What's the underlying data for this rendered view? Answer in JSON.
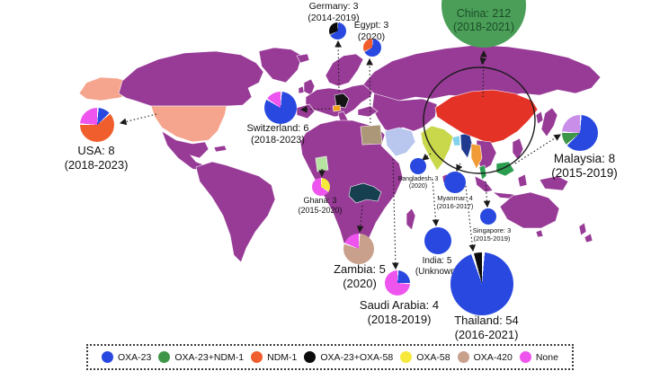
{
  "chart_data": {
    "type": "pie",
    "description": "World map with per-country pie charts of carbapenemase genotypes and sampling periods",
    "genotype_colors": {
      "OXA-23": "#2948df",
      "OXA-23+NDM-1": "#3e9749",
      "NDM-1": "#f15e2d",
      "OXA-23+OXA-58": "#0b0b0b",
      "OXA-58": "#f6e93c",
      "OXA-420": "#c8a08c",
      "None": "#ee55ee"
    },
    "pies": [
      {
        "id": "usa",
        "label": "USA: 8",
        "period": "(2018-2023)",
        "total": 8,
        "slices": [
          {
            "genotype": "OXA-23",
            "value": 1
          },
          {
            "genotype": "NDM-1",
            "value": 5
          },
          {
            "genotype": "None",
            "value": 2
          }
        ]
      },
      {
        "id": "switzerland",
        "label": "Switzerland: 6",
        "period": "(2018-2023)",
        "total": 6,
        "slices": [
          {
            "genotype": "OXA-23",
            "value": 5
          },
          {
            "genotype": "None",
            "value": 1
          }
        ]
      },
      {
        "id": "germany",
        "label": "Germany: 3",
        "period": "(2014-2019)",
        "total": 3,
        "slices": [
          {
            "genotype": "OXA-23",
            "value": 2
          },
          {
            "genotype": "OXA-23+OXA-58",
            "value": 1
          }
        ]
      },
      {
        "id": "egypt",
        "label": "Egypt: 3",
        "period": "(2020)",
        "total": 3,
        "slices": [
          {
            "genotype": "OXA-23",
            "value": 2
          },
          {
            "genotype": "NDM-1",
            "value": 1
          }
        ]
      },
      {
        "id": "china",
        "label": "China: 212",
        "period": "(2018-2021)",
        "total": 212,
        "slices": [
          {
            "genotype": "OXA-23+NDM-1",
            "value": 212,
            "color": "#4a9e58"
          }
        ]
      },
      {
        "id": "ghana",
        "label": "Ghana: 3",
        "period": "(2015-2020)",
        "total": 3,
        "slices": [
          {
            "genotype": "OXA-58",
            "value": 1
          },
          {
            "genotype": "None",
            "value": 2
          }
        ]
      },
      {
        "id": "zambia",
        "label": "Zambia: 5",
        "period": "(2020)",
        "total": 5,
        "slices": [
          {
            "genotype": "OXA-420",
            "value": 4
          },
          {
            "genotype": "None",
            "value": 1
          }
        ]
      },
      {
        "id": "saudi-arabia",
        "label": "Saudi Arabia: 4",
        "period": "(2018-2019)",
        "total": 4,
        "slices": [
          {
            "genotype": "OXA-23",
            "value": 1
          },
          {
            "genotype": "None",
            "value": 3
          }
        ]
      },
      {
        "id": "bangladesh",
        "label": "Bangladesh: 3",
        "period": "(2020)",
        "total": 3,
        "slices": [
          {
            "genotype": "OXA-23",
            "value": 3
          }
        ]
      },
      {
        "id": "myanmar",
        "label": "Myanmar: 4",
        "period": "(2016-2017)",
        "total": 4,
        "slices": [
          {
            "genotype": "OXA-23",
            "value": 4
          }
        ]
      },
      {
        "id": "india",
        "label": "India: 5",
        "period": "(Unknown)",
        "total": 5,
        "slices": [
          {
            "genotype": "OXA-23",
            "value": 5
          }
        ]
      },
      {
        "id": "singapore",
        "label": "Singapore: 3",
        "period": "(2015-2019)",
        "total": 3,
        "slices": [
          {
            "genotype": "OXA-23",
            "value": 3
          }
        ]
      },
      {
        "id": "thailand",
        "label": "Thailand: 54",
        "period": "(2016-2021)",
        "total": 54,
        "slices": [
          {
            "genotype": "OXA-23",
            "value": 51
          },
          {
            "genotype": "OXA-23+OXA-58",
            "value": 3
          }
        ]
      },
      {
        "id": "malaysia",
        "label": "Malaysia: 8",
        "period": "(2015-2019)",
        "total": 8,
        "slices": [
          {
            "genotype": "OXA-23",
            "value": 5
          },
          {
            "genotype": "OXA-23+NDM-1",
            "value": 1
          },
          {
            "genotype": "None",
            "value": 2,
            "color": "#c98fe8"
          }
        ]
      }
    ]
  },
  "legend": {
    "items": [
      {
        "label": "OXA-23",
        "color": "#2948df"
      },
      {
        "label": "OXA-23+NDM-1",
        "color": "#3e9749"
      },
      {
        "label": "NDM-1",
        "color": "#f15e2d"
      },
      {
        "label": "OXA-23+OXA-58",
        "color": "#0b0b0b"
      },
      {
        "label": "OXA-58",
        "color": "#f6e93c"
      },
      {
        "label": "OXA-420",
        "color": "#c8a08c"
      },
      {
        "label": "None",
        "color": "#ee55ee"
      }
    ]
  },
  "map_colors": {
    "ocean": "#ffffff",
    "land_default": "#983b97",
    "usa": "#f5a58d",
    "germany": "#141414",
    "switzerland": "#f2a31c",
    "egypt": "#ad9779",
    "saudi_arabia": "#b9c7ef",
    "ghana": "#b7e3a2",
    "zambia": "#16404f",
    "china": "#e53227",
    "india": "#c9d74b",
    "bangladesh": "#7fd2ea",
    "myanmar": "#203a90",
    "thailand": "#f09b36",
    "malaysia": "#2b9d4e"
  }
}
